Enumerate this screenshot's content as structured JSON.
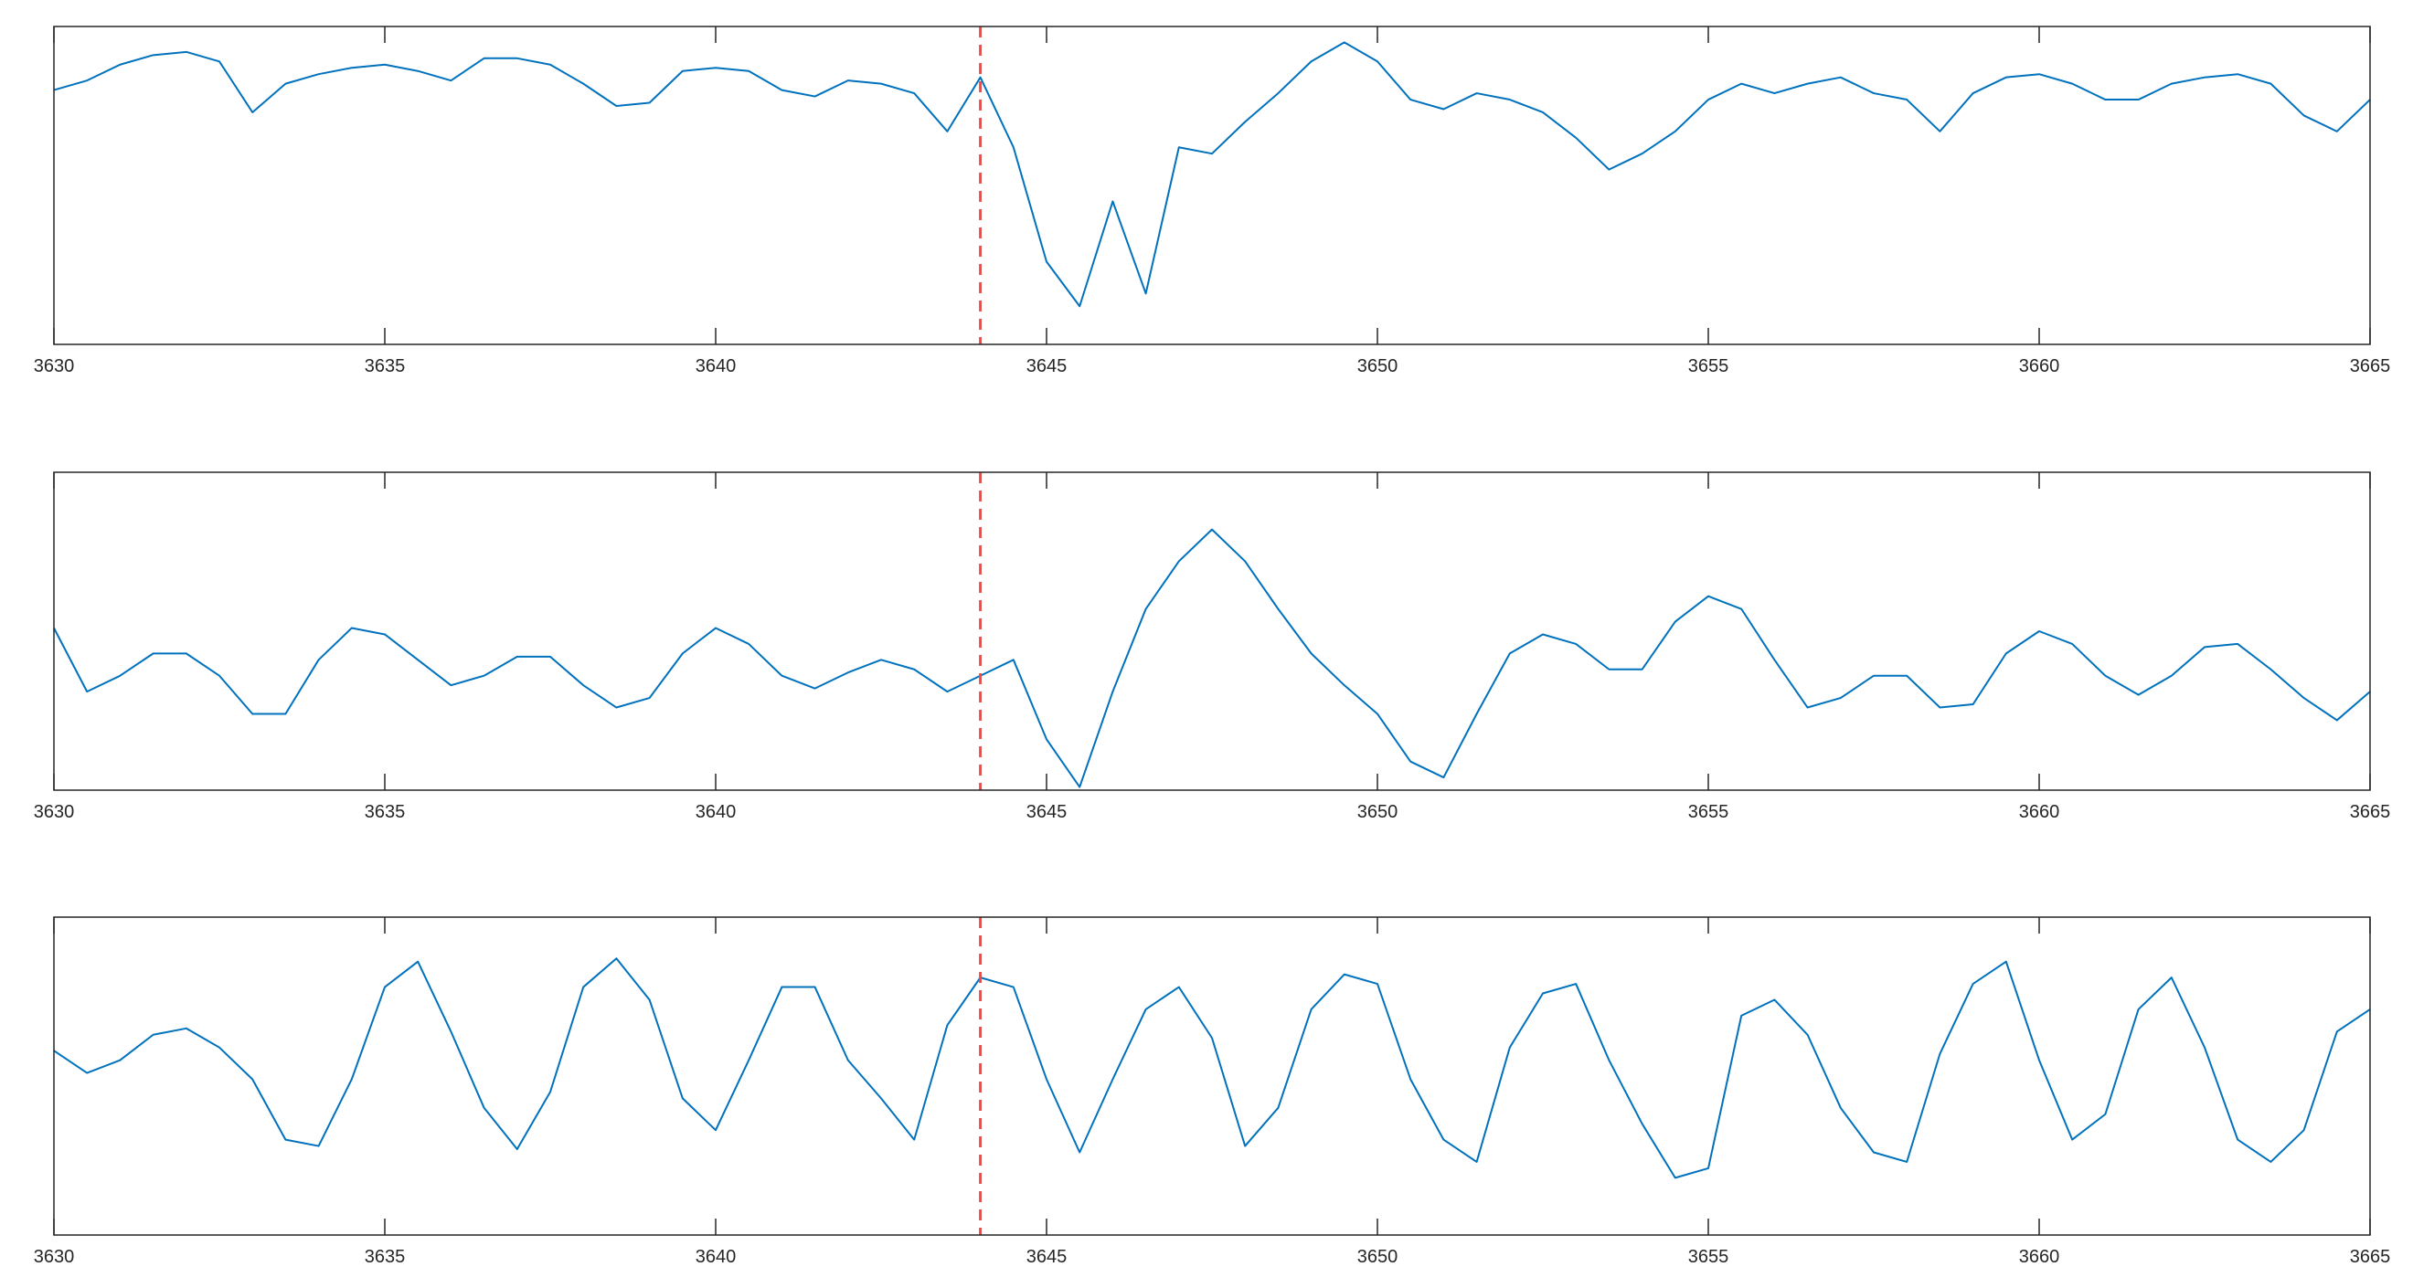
{
  "chart_data": [
    {
      "type": "line",
      "x": [
        3630,
        3630.5,
        3631,
        3631.5,
        3632,
        3632.5,
        3633,
        3633.5,
        3634,
        3634.5,
        3635,
        3635.5,
        3636,
        3636.5,
        3637,
        3637.5,
        3638,
        3638.5,
        3639,
        3639.5,
        3640,
        3640.5,
        3641,
        3641.5,
        3642,
        3642.5,
        3643,
        3643.5,
        3644,
        3644.5,
        3645,
        3645.5,
        3646,
        3646.5,
        3647,
        3647.5,
        3648,
        3648.5,
        3649,
        3649.5,
        3650,
        3650.5,
        3651,
        3651.5,
        3652,
        3652.5,
        3653,
        3653.5,
        3654,
        3654.5,
        3655,
        3655.5,
        3656,
        3656.5,
        3657,
        3657.5,
        3658,
        3658.5,
        3659,
        3659.5,
        3660,
        3660.5,
        3661,
        3661.5,
        3662,
        3662.5,
        3663,
        3663.5,
        3664,
        3664.5,
        3665
      ],
      "series": [
        {
          "color": "#0072bd",
          "values": [
            0.8,
            0.83,
            0.88,
            0.91,
            0.92,
            0.89,
            0.73,
            0.82,
            0.85,
            0.87,
            0.88,
            0.86,
            0.83,
            0.9,
            0.9,
            0.88,
            0.82,
            0.75,
            0.76,
            0.86,
            0.87,
            0.86,
            0.8,
            0.78,
            0.83,
            0.82,
            0.79,
            0.67,
            0.84,
            0.62,
            0.26,
            0.12,
            0.45,
            0.16,
            0.62,
            0.6,
            0.7,
            0.79,
            0.89,
            0.95,
            0.89,
            0.77,
            0.74,
            0.79,
            0.77,
            0.73,
            0.65,
            0.55,
            0.6,
            0.67,
            0.77,
            0.82,
            0.79,
            0.82,
            0.84,
            0.79,
            0.77,
            0.67,
            0.79,
            0.84,
            0.85,
            0.82,
            0.77,
            0.77,
            0.82,
            0.84,
            0.85,
            0.82,
            0.72,
            0.67,
            0.77
          ]
        }
      ],
      "xlim": [
        3630,
        3665
      ],
      "xticks": [
        3630,
        3635,
        3640,
        3645,
        3650,
        3655,
        3660,
        3665
      ],
      "ylim": [
        0,
        1
      ],
      "vline": {
        "x": 3644,
        "color": "#ff4444"
      }
    },
    {
      "type": "line",
      "x": [
        3630,
        3630.5,
        3631,
        3631.5,
        3632,
        3632.5,
        3633,
        3633.5,
        3634,
        3634.5,
        3635,
        3635.5,
        3636,
        3636.5,
        3637,
        3637.5,
        3638,
        3638.5,
        3639,
        3639.5,
        3640,
        3640.5,
        3641,
        3641.5,
        3642,
        3642.5,
        3643,
        3643.5,
        3644,
        3644.5,
        3645,
        3645.5,
        3646,
        3646.5,
        3647,
        3647.5,
        3648,
        3648.5,
        3649,
        3649.5,
        3650,
        3650.5,
        3651,
        3651.5,
        3652,
        3652.5,
        3653,
        3653.5,
        3654,
        3654.5,
        3655,
        3655.5,
        3656,
        3656.5,
        3657,
        3657.5,
        3658,
        3658.5,
        3659,
        3659.5,
        3660,
        3660.5,
        3661,
        3661.5,
        3662,
        3662.5,
        3663,
        3663.5,
        3664,
        3664.5,
        3665
      ],
      "series": [
        {
          "color": "#0072bd",
          "values": [
            0.51,
            0.31,
            0.36,
            0.43,
            0.43,
            0.36,
            0.24,
            0.24,
            0.41,
            0.51,
            0.49,
            0.41,
            0.33,
            0.36,
            0.42,
            0.42,
            0.33,
            0.26,
            0.29,
            0.43,
            0.51,
            0.46,
            0.36,
            0.32,
            0.37,
            0.41,
            0.38,
            0.31,
            0.36,
            0.41,
            0.16,
            0.01,
            0.31,
            0.57,
            0.72,
            0.82,
            0.72,
            0.57,
            0.43,
            0.33,
            0.24,
            0.09,
            0.04,
            0.24,
            0.43,
            0.49,
            0.46,
            0.38,
            0.38,
            0.53,
            0.61,
            0.57,
            0.41,
            0.26,
            0.29,
            0.36,
            0.36,
            0.26,
            0.27,
            0.43,
            0.5,
            0.46,
            0.36,
            0.3,
            0.36,
            0.45,
            0.46,
            0.38,
            0.29,
            0.22,
            0.31
          ]
        }
      ],
      "xlim": [
        3630,
        3665
      ],
      "xticks": [
        3630,
        3635,
        3640,
        3645,
        3650,
        3655,
        3660,
        3665
      ],
      "ylim": [
        0,
        1
      ],
      "vline": {
        "x": 3644,
        "color": "#ff4444"
      }
    },
    {
      "type": "line",
      "x": [
        3630,
        3630.5,
        3631,
        3631.5,
        3632,
        3632.5,
        3633,
        3633.5,
        3634,
        3634.5,
        3635,
        3635.5,
        3636,
        3636.5,
        3637,
        3637.5,
        3638,
        3638.5,
        3639,
        3639.5,
        3640,
        3640.5,
        3641,
        3641.5,
        3642,
        3642.5,
        3643,
        3643.5,
        3644,
        3644.5,
        3645,
        3645.5,
        3646,
        3646.5,
        3647,
        3647.5,
        3648,
        3648.5,
        3649,
        3649.5,
        3650,
        3650.5,
        3651,
        3651.5,
        3652,
        3652.5,
        3653,
        3653.5,
        3654,
        3654.5,
        3655,
        3655.5,
        3656,
        3656.5,
        3657,
        3657.5,
        3658,
        3658.5,
        3659,
        3659.5,
        3660,
        3660.5,
        3661,
        3661.5,
        3662,
        3662.5,
        3663,
        3663.5,
        3664,
        3664.5,
        3665
      ],
      "series": [
        {
          "color": "#0072bd",
          "values": [
            0.58,
            0.51,
            0.55,
            0.63,
            0.65,
            0.59,
            0.49,
            0.3,
            0.28,
            0.49,
            0.78,
            0.86,
            0.64,
            0.4,
            0.27,
            0.45,
            0.78,
            0.87,
            0.74,
            0.43,
            0.33,
            0.55,
            0.78,
            0.78,
            0.55,
            0.43,
            0.3,
            0.66,
            0.81,
            0.78,
            0.49,
            0.26,
            0.49,
            0.71,
            0.78,
            0.62,
            0.28,
            0.4,
            0.71,
            0.82,
            0.79,
            0.49,
            0.3,
            0.23,
            0.59,
            0.76,
            0.79,
            0.55,
            0.35,
            0.18,
            0.21,
            0.69,
            0.74,
            0.63,
            0.4,
            0.26,
            0.23,
            0.57,
            0.79,
            0.86,
            0.55,
            0.3,
            0.38,
            0.71,
            0.81,
            0.59,
            0.3,
            0.23,
            0.33,
            0.64,
            0.71
          ]
        }
      ],
      "xlim": [
        3630,
        3665
      ],
      "xticks": [
        3630,
        3635,
        3640,
        3645,
        3650,
        3655,
        3660,
        3665
      ],
      "ylim": [
        0,
        1
      ],
      "vline": {
        "x": 3644,
        "color": "#ff4444"
      }
    }
  ]
}
